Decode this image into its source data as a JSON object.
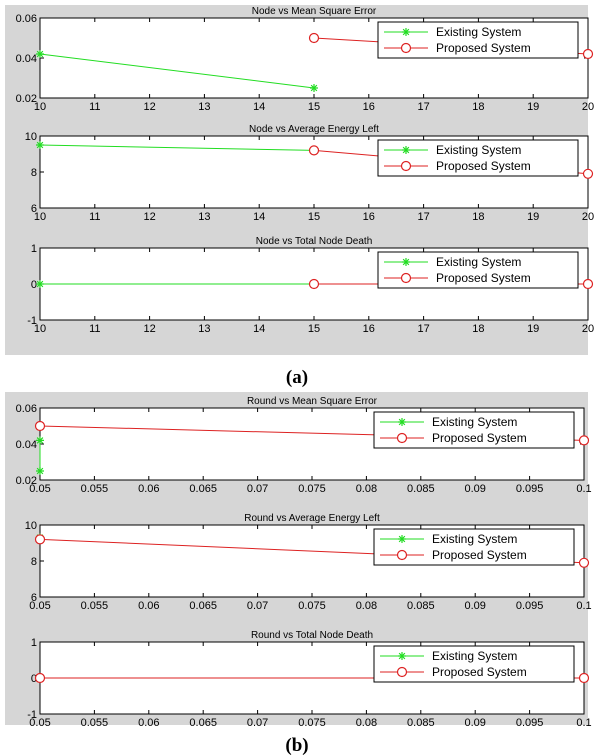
{
  "figure": {
    "panels": [
      {
        "caption": "(a)",
        "x_ticks": [
          "10",
          "11",
          "12",
          "13",
          "14",
          "15",
          "16",
          "17",
          "18",
          "19",
          "20"
        ],
        "subplots": [
          {
            "title": "Node vs Mean Square Error",
            "y_ticks": [
              "0.02",
              "0.04",
              "0.06"
            ]
          },
          {
            "title": "Node vs Average Energy Left",
            "y_ticks": [
              "6",
              "8",
              "10"
            ]
          },
          {
            "title": "Node vs Total Node Death",
            "y_ticks": [
              "-1",
              "0",
              "1"
            ]
          }
        ]
      },
      {
        "caption": "(b)",
        "x_ticks": [
          "0.05",
          "0.055",
          "0.06",
          "0.065",
          "0.07",
          "0.075",
          "0.08",
          "0.085",
          "0.09",
          "0.095",
          "0.1"
        ],
        "subplots": [
          {
            "title": "Round vs Mean Square Error",
            "y_ticks": [
              "0.02",
              "0.04",
              "0.06"
            ]
          },
          {
            "title": "Round vs Average Energy Left",
            "y_ticks": [
              "6",
              "8",
              "10"
            ]
          },
          {
            "title": "Round vs Total Node Death",
            "y_ticks": [
              "-1",
              "0",
              "1"
            ]
          }
        ]
      }
    ],
    "legend": [
      "Existing System",
      "Proposed System"
    ],
    "colors": {
      "existing": "#22dd22",
      "proposed": "#dd2222",
      "panel_background": "#d6d6d6"
    },
    "markers": {
      "existing": "star",
      "proposed": "circle"
    }
  },
  "chart_data": [
    {
      "type": "line",
      "title": "Node vs Mean Square Error",
      "xlim": [
        10,
        20
      ],
      "ylim": [
        0.02,
        0.06
      ],
      "legend_position": "top-right",
      "series": [
        {
          "name": "Existing System",
          "x": [
            10,
            15
          ],
          "y": [
            0.042,
            0.025
          ]
        },
        {
          "name": "Proposed System",
          "x": [
            15,
            20
          ],
          "y": [
            0.05,
            0.042
          ]
        }
      ]
    },
    {
      "type": "line",
      "title": "Node vs Average Energy Left",
      "xlim": [
        10,
        20
      ],
      "ylim": [
        6,
        10
      ],
      "legend_position": "top-right",
      "series": [
        {
          "name": "Existing System",
          "x": [
            10,
            15
          ],
          "y": [
            9.5,
            9.2
          ]
        },
        {
          "name": "Proposed System",
          "x": [
            15,
            20
          ],
          "y": [
            9.2,
            7.9
          ]
        }
      ]
    },
    {
      "type": "line",
      "title": "Node vs Total Node Death",
      "xlim": [
        10,
        20
      ],
      "ylim": [
        -1,
        1
      ],
      "legend_position": "top-right",
      "series": [
        {
          "name": "Existing System",
          "x": [
            10,
            15
          ],
          "y": [
            0,
            0
          ]
        },
        {
          "name": "Proposed System",
          "x": [
            15,
            20
          ],
          "y": [
            0,
            0
          ]
        }
      ]
    },
    {
      "type": "line",
      "title": "Round vs Mean Square Error",
      "xlim": [
        0.05,
        0.1
      ],
      "ylim": [
        0.02,
        0.06
      ],
      "legend_position": "top-right",
      "series": [
        {
          "name": "Existing System",
          "x": [
            0.05,
            0.05
          ],
          "y": [
            0.042,
            0.025
          ]
        },
        {
          "name": "Proposed System",
          "x": [
            0.05,
            0.1
          ],
          "y": [
            0.05,
            0.042
          ]
        }
      ]
    },
    {
      "type": "line",
      "title": "Round vs Average Energy Left",
      "xlim": [
        0.05,
        0.1
      ],
      "ylim": [
        6,
        10
      ],
      "legend_position": "top-right",
      "series": [
        {
          "name": "Existing System",
          "x": [
            0.05,
            0.05
          ],
          "y": [
            9.3,
            9.2
          ]
        },
        {
          "name": "Proposed System",
          "x": [
            0.05,
            0.1
          ],
          "y": [
            9.2,
            7.9
          ]
        }
      ]
    },
    {
      "type": "line",
      "title": "Round vs Total Node Death",
      "xlim": [
        0.05,
        0.1
      ],
      "ylim": [
        -1,
        1
      ],
      "legend_position": "top-right",
      "series": [
        {
          "name": "Existing System",
          "x": [
            0.05,
            0.05
          ],
          "y": [
            0,
            0
          ]
        },
        {
          "name": "Proposed System",
          "x": [
            0.05,
            0.1
          ],
          "y": [
            0,
            0
          ]
        }
      ]
    }
  ]
}
